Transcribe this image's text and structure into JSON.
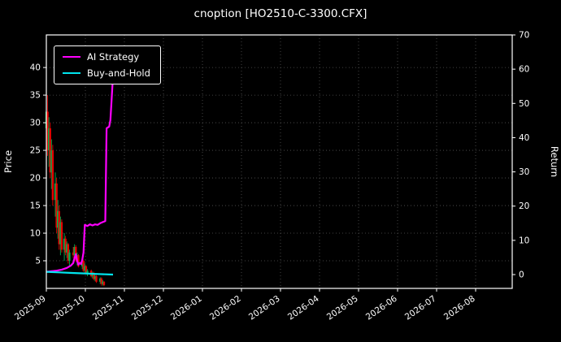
{
  "window": {
    "title": "cnoption [HO2510-C-3300.CFX]"
  },
  "chart_data": {
    "type": "candlestick+line",
    "title": "cnoption [HO2510-C-3300.CFX]",
    "x_axis": {
      "start_date": "2025-09-01",
      "tick_labels": [
        "2025-09",
        "2025-10",
        "2025-11",
        "2025-12",
        "2026-01",
        "2026-02",
        "2026-03",
        "2026-04",
        "2026-05",
        "2026-06",
        "2026-07",
        "2026-08"
      ]
    },
    "left_axis": {
      "label": "Price",
      "ticks": [
        5,
        10,
        15,
        20,
        25,
        30,
        35,
        40
      ],
      "range": [
        0,
        45.9
      ]
    },
    "right_axis": {
      "label": "Return",
      "ticks": [
        0,
        10,
        20,
        30,
        40,
        50,
        60,
        70
      ],
      "range": [
        -4.03,
        70
      ]
    },
    "grid": true,
    "legend": {
      "position": "upper-left",
      "entries": [
        {
          "label": "AI Strategy",
          "color": "#ff00ff"
        },
        {
          "label": "Buy-and-Hold",
          "color": "#00e5ee"
        }
      ]
    },
    "candles_format": [
      "day_offset",
      "open",
      "high",
      "low",
      "close"
    ],
    "candles": [
      [
        0,
        29,
        33,
        26,
        32
      ],
      [
        1,
        32,
        35,
        24,
        25
      ],
      [
        2,
        25,
        31,
        22,
        29
      ],
      [
        3,
        29,
        30,
        20,
        21
      ],
      [
        4,
        21,
        27,
        18,
        25
      ],
      [
        5,
        25,
        26,
        15,
        16
      ],
      [
        7,
        16,
        21,
        13,
        19
      ],
      [
        8,
        19,
        20,
        10,
        11
      ],
      [
        9,
        11,
        16,
        9,
        14
      ],
      [
        10,
        14,
        15,
        7,
        8
      ],
      [
        11,
        8,
        13,
        6,
        12
      ],
      [
        12,
        12,
        12.5,
        6.5,
        7
      ],
      [
        14,
        7,
        10,
        5,
        9
      ],
      [
        15,
        9,
        9.5,
        6,
        6.5
      ],
      [
        16,
        6.5,
        8.5,
        5.5,
        8
      ],
      [
        17,
        8,
        8.2,
        4.5,
        5
      ],
      [
        18,
        5,
        7,
        4,
        6.5
      ],
      [
        21,
        6.5,
        7.5,
        5.5,
        6
      ],
      [
        22,
        6,
        8,
        5,
        7.5
      ],
      [
        23,
        7.5,
        7.8,
        4.8,
        5.2
      ],
      [
        24,
        5.2,
        6.5,
        4.2,
        6
      ],
      [
        25,
        6,
        6.2,
        3.8,
        4
      ],
      [
        28,
        4,
        5.5,
        3.5,
        5
      ],
      [
        29,
        5,
        5.2,
        3,
        3.2
      ],
      [
        30,
        3.2,
        4.5,
        2.8,
        4
      ],
      [
        31,
        4,
        4.2,
        2.5,
        2.7
      ],
      [
        32,
        2.7,
        3.5,
        2.2,
        3.2
      ],
      [
        35,
        3.2,
        3.4,
        2,
        2.2
      ],
      [
        36,
        2.2,
        3,
        1.8,
        2.8
      ],
      [
        37,
        2.8,
        3,
        1.5,
        1.7
      ],
      [
        38,
        1.7,
        2.5,
        1.3,
        2.2
      ],
      [
        39,
        2.2,
        2.4,
        1,
        1.2
      ],
      [
        42,
        1.2,
        2,
        0.8,
        1.8
      ],
      [
        43,
        1.8,
        2,
        0.5,
        0.8
      ],
      [
        44,
        0.8,
        1.5,
        0.5,
        1.2
      ],
      [
        45,
        1.2,
        1.3,
        0.4,
        0.6
      ]
    ],
    "series": [
      {
        "name": "AI Strategy",
        "color": "#ff00ff",
        "axis": "left",
        "points": [
          [
            0,
            3
          ],
          [
            4,
            3.1
          ],
          [
            8,
            3.2
          ],
          [
            12,
            3.4
          ],
          [
            16,
            3.7
          ],
          [
            19,
            4.1
          ],
          [
            21,
            4.6
          ],
          [
            22,
            5.5
          ],
          [
            23,
            6.2
          ],
          [
            24,
            5.0
          ],
          [
            25,
            4.3
          ],
          [
            26,
            4.6
          ],
          [
            27,
            4.4
          ],
          [
            28,
            5.2
          ],
          [
            29,
            6.5
          ],
          [
            30,
            11.5
          ],
          [
            32,
            11.3
          ],
          [
            34,
            11.6
          ],
          [
            36,
            11.4
          ],
          [
            38,
            11.6
          ],
          [
            40,
            11.5
          ],
          [
            42,
            11.8
          ],
          [
            44,
            12.0
          ],
          [
            46,
            12.2
          ],
          [
            47,
            29
          ],
          [
            49,
            29.3
          ],
          [
            50,
            30.5
          ],
          [
            52,
            38.5
          ]
        ]
      },
      {
        "name": "Buy-and-Hold",
        "color": "#00e5ee",
        "axis": "left",
        "points": [
          [
            0,
            3
          ],
          [
            10,
            2.9
          ],
          [
            20,
            2.8
          ],
          [
            30,
            2.7
          ],
          [
            40,
            2.6
          ],
          [
            52,
            2.5
          ]
        ]
      }
    ],
    "colors": {
      "up": "#00b050",
      "down": "#e60000",
      "background": "#000000",
      "text": "#ffffff",
      "grid": "#555555",
      "border": "#ffffff"
    }
  }
}
